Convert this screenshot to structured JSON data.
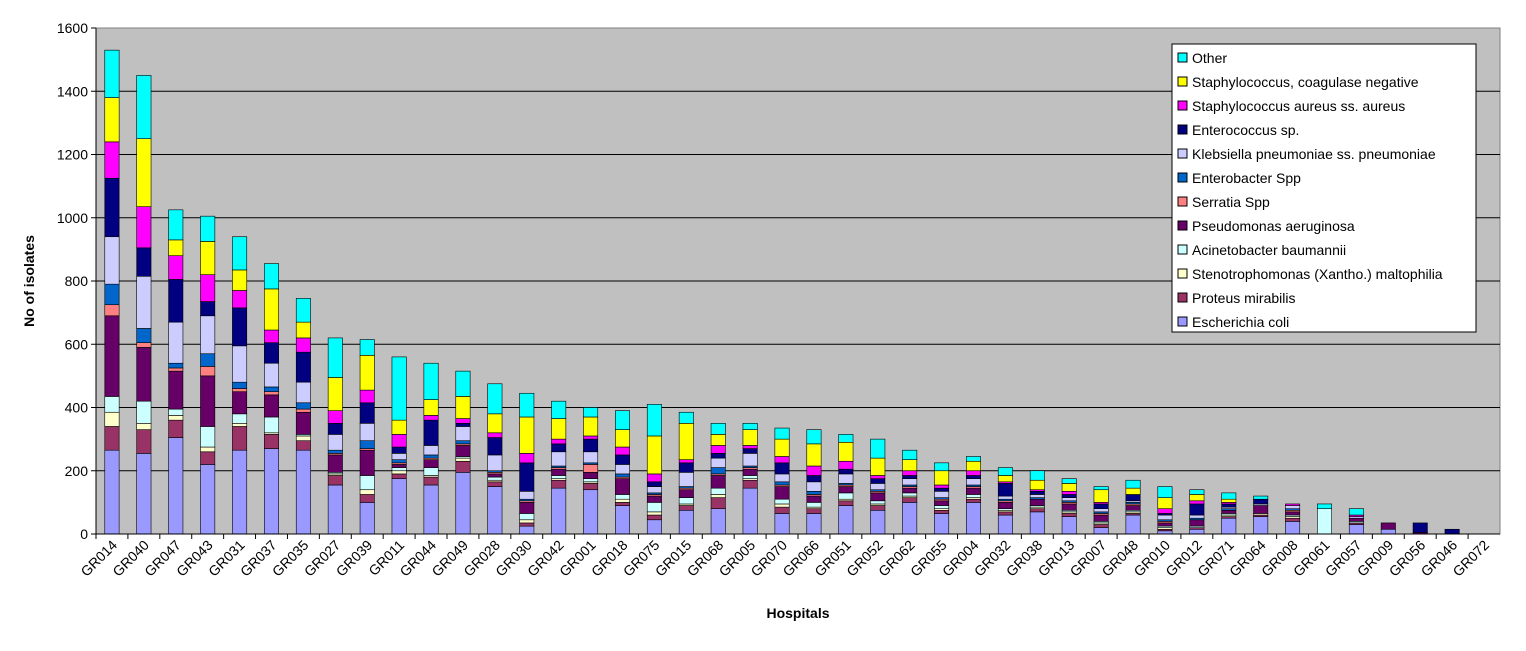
{
  "chart_data": {
    "type": "bar",
    "stacked": true,
    "xlabel": "Hospitals",
    "ylabel": "No of isolates",
    "ylim": [
      0,
      1600
    ],
    "yticks": [
      0,
      200,
      400,
      600,
      800,
      1000,
      1200,
      1400,
      1600
    ],
    "grid": true,
    "legend_position": "top-right",
    "categories": [
      "GR014",
      "GR040",
      "GR047",
      "GR043",
      "GR031",
      "GR037",
      "GR035",
      "GR027",
      "GR039",
      "GR011",
      "GR044",
      "GR049",
      "GR028",
      "GR030",
      "GR042",
      "GR001",
      "GR018",
      "GR075",
      "GR015",
      "GR068",
      "GR005",
      "GR070",
      "GR066",
      "GR051",
      "GR052",
      "GR062",
      "GR055",
      "GR004",
      "GR032",
      "GR038",
      "GR013",
      "GR007",
      "GR048",
      "GR010",
      "GR012",
      "GR071",
      "GR064",
      "GR008",
      "GR061",
      "GR057",
      "GR009",
      "GR056",
      "GR046",
      "GR072"
    ],
    "series": [
      {
        "name": "Escherichia coli",
        "color": "#9999ff",
        "values": [
          265,
          255,
          305,
          220,
          265,
          270,
          265,
          155,
          100,
          175,
          155,
          195,
          150,
          25,
          145,
          140,
          90,
          45,
          75,
          80,
          145,
          65,
          65,
          90,
          75,
          100,
          65,
          100,
          60,
          70,
          55,
          20,
          60,
          10,
          15,
          50,
          55,
          40,
          0,
          30,
          15,
          0,
          0,
          0
        ]
      },
      {
        "name": "Proteus mirabilis",
        "color": "#993366",
        "values": [
          75,
          75,
          55,
          40,
          75,
          45,
          30,
          30,
          25,
          15,
          25,
          35,
          15,
          10,
          25,
          20,
          10,
          15,
          15,
          35,
          25,
          20,
          15,
          15,
          15,
          15,
          10,
          10,
          10,
          10,
          10,
          10,
          5,
          5,
          5,
          5,
          5,
          10,
          0,
          5,
          0,
          0,
          0,
          0
        ]
      },
      {
        "name": "Stenotrophomonas (Xantho.) maltophilia",
        "color": "#ffffcc",
        "values": [
          45,
          20,
          15,
          15,
          10,
          5,
          15,
          5,
          15,
          10,
          5,
          10,
          5,
          10,
          5,
          5,
          10,
          10,
          5,
          10,
          5,
          10,
          5,
          5,
          5,
          5,
          5,
          5,
          5,
          5,
          5,
          5,
          5,
          5,
          0,
          5,
          5,
          5,
          0,
          0,
          0,
          0,
          0,
          0
        ]
      },
      {
        "name": "Acinetobacter baumannii",
        "color": "#ccffff",
        "values": [
          50,
          70,
          20,
          65,
          30,
          50,
          5,
          5,
          45,
          10,
          25,
          5,
          10,
          20,
          10,
          10,
          15,
          30,
          20,
          20,
          10,
          15,
          15,
          20,
          10,
          10,
          10,
          10,
          5,
          5,
          5,
          5,
          5,
          5,
          5,
          5,
          0,
          5,
          80,
          5,
          0,
          0,
          0,
          0
        ]
      },
      {
        "name": "Pseudomonas aeruginosa",
        "color": "#660066",
        "values": [
          255,
          170,
          120,
          160,
          70,
          70,
          70,
          55,
          80,
          10,
          25,
          35,
          10,
          35,
          20,
          20,
          50,
          20,
          25,
          40,
          20,
          40,
          20,
          20,
          25,
          15,
          15,
          20,
          20,
          20,
          20,
          20,
          15,
          10,
          20,
          10,
          25,
          10,
          0,
          10,
          20,
          5,
          0,
          0
        ]
      },
      {
        "name": "Serratia Spp",
        "color": "#ff8080",
        "values": [
          35,
          15,
          10,
          30,
          10,
          10,
          10,
          5,
          5,
          5,
          5,
          5,
          5,
          5,
          5,
          25,
          5,
          5,
          5,
          5,
          5,
          5,
          5,
          5,
          5,
          5,
          5,
          5,
          5,
          0,
          5,
          5,
          5,
          5,
          0,
          0,
          0,
          5,
          0,
          0,
          0,
          0,
          0,
          0
        ]
      },
      {
        "name": "Enterobacter Spp",
        "color": "#0066cc",
        "values": [
          65,
          45,
          15,
          40,
          20,
          15,
          20,
          10,
          25,
          10,
          10,
          10,
          5,
          5,
          5,
          5,
          10,
          5,
          5,
          20,
          5,
          10,
          10,
          5,
          5,
          5,
          5,
          5,
          5,
          5,
          5,
          5,
          5,
          5,
          5,
          5,
          0,
          5,
          0,
          0,
          0,
          0,
          0,
          0
        ]
      },
      {
        "name": "Klebsiella pneumoniae ss. pneumoniae",
        "color": "#ccccff",
        "values": [
          150,
          165,
          130,
          120,
          115,
          75,
          65,
          50,
          55,
          20,
          30,
          45,
          50,
          25,
          45,
          35,
          30,
          20,
          45,
          30,
          40,
          25,
          30,
          30,
          20,
          20,
          20,
          20,
          10,
          10,
          10,
          10,
          5,
          15,
          10,
          5,
          5,
          10,
          0,
          5,
          0,
          0,
          0,
          0
        ]
      },
      {
        "name": "Enterococcus sp.",
        "color": "#000080",
        "values": [
          185,
          90,
          135,
          45,
          120,
          65,
          95,
          35,
          65,
          20,
          80,
          10,
          55,
          90,
          25,
          40,
          30,
          15,
          30,
          15,
          15,
          35,
          20,
          15,
          15,
          10,
          10,
          10,
          40,
          10,
          10,
          15,
          20,
          5,
          35,
          10,
          15,
          0,
          0,
          0,
          0,
          30,
          15,
          0
        ]
      },
      {
        "name": "Staphylococcus aureus ss. aureus",
        "color": "#ff00ff",
        "values": [
          115,
          130,
          75,
          85,
          55,
          40,
          45,
          40,
          40,
          40,
          15,
          15,
          15,
          30,
          15,
          10,
          25,
          25,
          10,
          25,
          10,
          20,
          30,
          25,
          10,
          15,
          10,
          15,
          5,
          5,
          10,
          5,
          0,
          15,
          10,
          5,
          0,
          5,
          0,
          5,
          0,
          0,
          0,
          0
        ]
      },
      {
        "name": "Staphylococcus, coagulase negative",
        "color": "#ffff00",
        "values": [
          140,
          215,
          50,
          105,
          65,
          130,
          50,
          105,
          110,
          45,
          50,
          70,
          60,
          115,
          65,
          60,
          55,
          120,
          115,
          35,
          50,
          55,
          70,
          60,
          55,
          35,
          45,
          30,
          20,
          30,
          25,
          40,
          20,
          35,
          20,
          10,
          0,
          0,
          0,
          0,
          0,
          0,
          0,
          0
        ]
      },
      {
        "name": "Other",
        "color": "#00ffff",
        "values": [
          150,
          200,
          95,
          80,
          105,
          80,
          75,
          125,
          50,
          200,
          115,
          80,
          95,
          75,
          55,
          30,
          60,
          100,
          35,
          35,
          20,
          35,
          45,
          25,
          60,
          30,
          25,
          15,
          25,
          30,
          15,
          10,
          25,
          35,
          15,
          20,
          10,
          0,
          15,
          20,
          0,
          0,
          0,
          0
        ]
      }
    ],
    "legend_order": [
      "Other",
      "Staphylococcus, coagulase negative",
      "Staphylococcus aureus ss. aureus",
      "Enterococcus sp.",
      "Klebsiella pneumoniae ss. pneumoniae",
      "Enterobacter Spp",
      "Serratia Spp",
      "Pseudomonas aeruginosa",
      "Acinetobacter baumannii",
      "Stenotrophomonas (Xantho.) maltophilia",
      "Proteus mirabilis",
      "Escherichia coli"
    ]
  }
}
